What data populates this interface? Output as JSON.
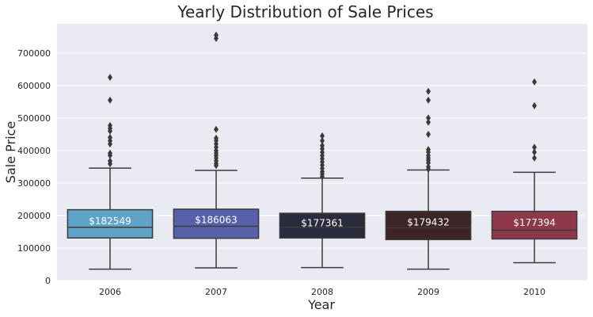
{
  "chart_data": {
    "type": "box",
    "title": "Yearly Distribution of Sale Prices",
    "xlabel": "Year",
    "ylabel": "Sale Price",
    "ylim": [
      0,
      790000
    ],
    "yticks": [
      0,
      100000,
      200000,
      300000,
      400000,
      500000,
      600000,
      700000
    ],
    "ytick_labels": [
      "0",
      "100000",
      "200000",
      "300000",
      "400000",
      "500000",
      "600000",
      "700000"
    ],
    "grid": true,
    "categories": [
      "2006",
      "2007",
      "2008",
      "2009",
      "2010"
    ],
    "boxes": [
      {
        "category": "2006",
        "color": "#5fa3c9",
        "whisker_low": 35000,
        "q1": 131000,
        "median": 163995,
        "q3": 218000,
        "whisker_high": 346000,
        "outliers": [
          359000,
          368000,
          385000,
          392000,
          420000,
          430000,
          440000,
          460000,
          468000,
          477000,
          555000,
          625000
        ],
        "mean_label": "$182549",
        "mean": 182549
      },
      {
        "category": "2007",
        "color": "#5761ab",
        "whisker_low": 39000,
        "q1": 130000,
        "median": 167000,
        "q3": 219500,
        "whisker_high": 339000,
        "outliers": [
          354000,
          360000,
          368000,
          377000,
          385000,
          392000,
          400000,
          410000,
          420000,
          430000,
          438000,
          465000,
          745000,
          755000
        ],
        "mean_label": "$186063",
        "mean": 186063
      },
      {
        "category": "2008",
        "color": "#2a2b3d",
        "whisker_low": 40000,
        "q1": 131000,
        "median": 164000,
        "q3": 207000,
        "whisker_high": 315000,
        "outliers": [
          320000,
          328000,
          335000,
          345000,
          355000,
          365000,
          375000,
          385000,
          395000,
          405000,
          415000,
          430000,
          445000
        ],
        "mean_label": "$177361",
        "mean": 177361
      },
      {
        "category": "2009",
        "color": "#3c2525",
        "whisker_low": 35000,
        "q1": 126000,
        "median": 162000,
        "q3": 213000,
        "whisker_high": 340000,
        "outliers": [
          343000,
          350000,
          362000,
          370000,
          377000,
          385000,
          395000,
          403000,
          450000,
          487000,
          500000,
          555000,
          582000
        ],
        "mean_label": "$179432",
        "mean": 179432
      },
      {
        "category": "2010",
        "color": "#8f3849",
        "whisker_low": 55000,
        "q1": 128000,
        "median": 155000,
        "q3": 213000,
        "whisker_high": 333000,
        "outliers": [
          377000,
          395000,
          410000,
          538000,
          611000
        ],
        "mean_label": "$177394",
        "mean": 177394
      }
    ],
    "colors": {
      "plot_background": "#eaeaf2",
      "grid": "#ffffff",
      "whisker": "#3b3b3b",
      "outlier": "#3b3b3b"
    }
  }
}
